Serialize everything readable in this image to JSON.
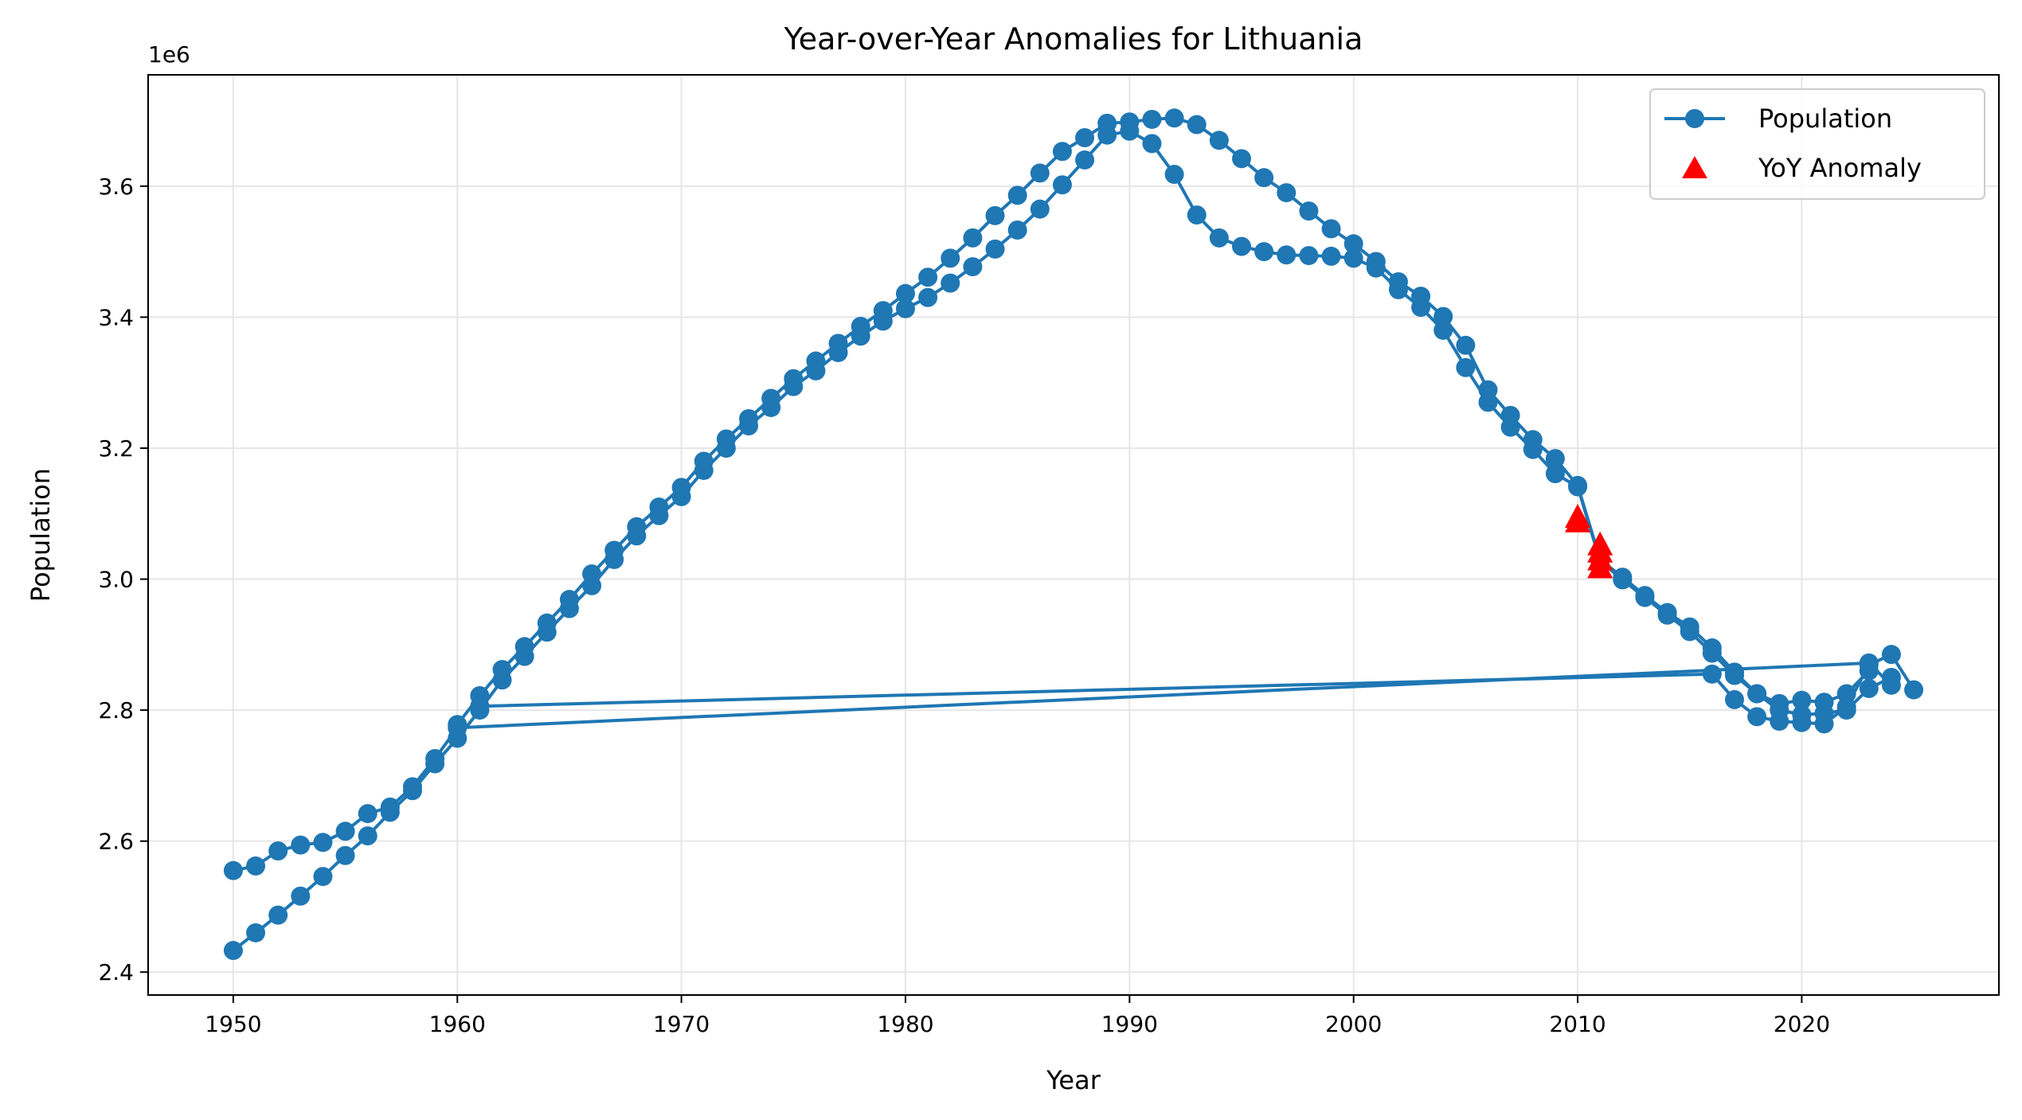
{
  "chart_data": {
    "type": "line",
    "title": "Year-over-Year Anomalies for Lithuania",
    "xlabel": "Year",
    "ylabel": "Population",
    "y_offset_label": "1e6",
    "y_scale": 1000000,
    "xlim": [
      1946.2,
      2028.8
    ],
    "ylim": [
      2.365,
      3.77
    ],
    "xticks": [
      1950,
      1960,
      1970,
      1980,
      1990,
      2000,
      2010,
      2020
    ],
    "yticks": [
      2.4,
      2.6,
      2.8,
      3.0,
      3.2,
      3.4,
      3.6
    ],
    "ytick_labels": [
      "2.4",
      "2.6",
      "2.8",
      "3.0",
      "3.2",
      "3.4",
      "3.6"
    ],
    "grid": true,
    "legend_position": "top-right",
    "series": [
      {
        "name": "Population",
        "color": "#1f77b4",
        "marker": "circle",
        "segments": [
          {
            "x": [
              1950,
              1951,
              1952,
              1953,
              1954,
              1955,
              1956,
              1957,
              1958,
              1959,
              1960,
              1961,
              1962,
              1963,
              1964,
              1965,
              1966,
              1967,
              1968,
              1969,
              1970,
              1971,
              1972,
              1973,
              1974,
              1975,
              1976,
              1977,
              1978,
              1979,
              1980,
              1981,
              1982,
              1983,
              1984,
              1985,
              1986,
              1987,
              1988,
              1989,
              1990,
              1991,
              1992,
              1993,
              1994,
              1995,
              1996,
              1997,
              1998,
              1999,
              2000,
              2001,
              2002,
              2003,
              2004,
              2005,
              2006,
              2007,
              2008,
              2009,
              2010,
              2011,
              2012,
              2013,
              2014,
              2015,
              2016,
              2017,
              2018,
              2019,
              2020,
              2021,
              2022,
              2023,
              2024
            ],
            "y": [
              2.433,
              2.46,
              2.487,
              2.516,
              2.546,
              2.578,
              2.608,
              2.644,
              2.677,
              2.718,
              2.757,
              2.8,
              2.846,
              2.882,
              2.919,
              2.955,
              2.99,
              3.03,
              3.066,
              3.097,
              3.126,
              3.166,
              3.2,
              3.234,
              3.262,
              3.294,
              3.318,
              3.346,
              3.371,
              3.394,
              3.413,
              3.43,
              3.452,
              3.477,
              3.504,
              3.533,
              3.565,
              3.602,
              3.64,
              3.678,
              3.684,
              3.665,
              3.618,
              3.556,
              3.521,
              3.508,
              3.5,
              3.495,
              3.494,
              3.493,
              3.49,
              3.475,
              3.442,
              3.415,
              3.38,
              3.323,
              3.27,
              3.232,
              3.198,
              3.161,
              3.141,
              3.028,
              2.999,
              2.972,
              2.945,
              2.92,
              2.887,
              2.853,
              2.825,
              2.8,
              2.793,
              2.795,
              2.8,
              2.833,
              2.85
            ]
          },
          {
            "x": [
              1960,
              1961,
              1962,
              1963,
              1964,
              1965,
              1966,
              1967,
              1968,
              1969,
              1970,
              1971,
              1972,
              1973,
              1974,
              1975,
              1976,
              1977,
              1978,
              1979,
              1980,
              1981,
              1982,
              1983,
              1984,
              1985,
              1986,
              1987,
              1988,
              1989,
              1990,
              1991,
              1992,
              1993,
              1994,
              1995,
              1996,
              1997,
              1998,
              1999,
              2000,
              2001,
              2002,
              2003,
              2004,
              2005,
              2006,
              2007,
              2008,
              2009,
              2010,
              2011,
              2012,
              2013,
              2014,
              2015,
              2016,
              2017,
              2018,
              2019,
              2020,
              2021,
              2022,
              2023
            ],
            "y": [
              2.778,
              2.822,
              2.862,
              2.897,
              2.933,
              2.969,
              3.008,
              3.044,
              3.08,
              3.11,
              3.14,
              3.18,
              3.214,
              3.245,
              3.276,
              3.306,
              3.333,
              3.36,
              3.386,
              3.41,
              3.436,
              3.461,
              3.49,
              3.521,
              3.555,
              3.586,
              3.62,
              3.653,
              3.674,
              3.696,
              3.698,
              3.702,
              3.704,
              3.694,
              3.67,
              3.642,
              3.613,
              3.59,
              3.562,
              3.535,
              3.512,
              3.485,
              3.454,
              3.432,
              3.401,
              3.357,
              3.289,
              3.25,
              3.213,
              3.184,
              3.143,
              3.03,
              3.003,
              2.975,
              2.949,
              2.927,
              2.895,
              2.858,
              2.825,
              2.81,
              2.815,
              2.812,
              2.825,
              2.86
            ]
          },
          {
            "x": [
              1961,
              2016,
              2017,
              2018,
              2019,
              2020,
              2021,
              2022,
              2023,
              2024,
              2025
            ],
            "y": [
              2.806,
              2.855,
              2.816,
              2.79,
              2.783,
              2.781,
              2.779,
              2.805,
              2.869,
              2.885,
              2.831
            ]
          },
          {
            "x": [
              1950,
              1951,
              1952,
              1953,
              1954,
              1955,
              1956,
              1957,
              1958,
              1959,
              1960,
              2023,
              2024
            ],
            "y": [
              2.555,
              2.562,
              2.585,
              2.594,
              2.598,
              2.615,
              2.642,
              2.652,
              2.683,
              2.726,
              2.773,
              2.872,
              2.838
            ]
          }
        ]
      },
      {
        "name": "YoY Anomaly",
        "color": "#ff0000",
        "marker": "triangle",
        "points": [
          {
            "x": 2010,
            "y": 3.093
          },
          {
            "x": 2010,
            "y": 3.086
          },
          {
            "x": 2011,
            "y": 3.051
          },
          {
            "x": 2011,
            "y": 3.04
          },
          {
            "x": 2011,
            "y": 3.028
          },
          {
            "x": 2011,
            "y": 3.016
          }
        ]
      }
    ]
  }
}
